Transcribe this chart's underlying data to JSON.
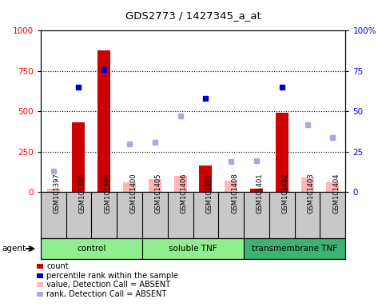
{
  "title": "GDS2773 / 1427345_a_at",
  "samples": [
    "GSM101397",
    "GSM101398",
    "GSM101399",
    "GSM101400",
    "GSM101405",
    "GSM101406",
    "GSM101407",
    "GSM101408",
    "GSM101401",
    "GSM101402",
    "GSM101403",
    "GSM101404"
  ],
  "groups": [
    {
      "name": "control",
      "start": 0,
      "end": 4,
      "color": "#90EE90"
    },
    {
      "name": "soluble TNF",
      "start": 4,
      "end": 8,
      "color": "#90EE90"
    },
    {
      "name": "transmembrane TNF",
      "start": 8,
      "end": 12,
      "color": "#3CB371"
    }
  ],
  "bar_values": [
    20,
    430,
    880,
    20,
    20,
    20,
    165,
    20,
    20,
    490,
    20,
    20
  ],
  "bar_absent": [
    20,
    null,
    null,
    60,
    80,
    100,
    null,
    70,
    null,
    null,
    90,
    60
  ],
  "rank_present": [
    null,
    65,
    76,
    null,
    null,
    null,
    58,
    null,
    null,
    65,
    null,
    null
  ],
  "rank_absent": [
    13,
    null,
    null,
    30,
    31,
    47,
    null,
    19,
    19.5,
    null,
    41.5,
    33.5
  ],
  "bar_color": "#cc0000",
  "bar_absent_color": "#ffb6b6",
  "rank_present_color": "#0000cc",
  "rank_absent_color": "#aaaadd",
  "ylim_left": [
    0,
    1000
  ],
  "ylim_right": [
    0,
    100
  ],
  "yticks_left": [
    0,
    250,
    500,
    750,
    1000
  ],
  "yticks_right": [
    0,
    25,
    50,
    75,
    100
  ],
  "ytick_labels_left": [
    "0",
    "250",
    "500",
    "750",
    "1000"
  ],
  "ytick_labels_right": [
    "0",
    "25",
    "50",
    "75",
    "100%"
  ]
}
